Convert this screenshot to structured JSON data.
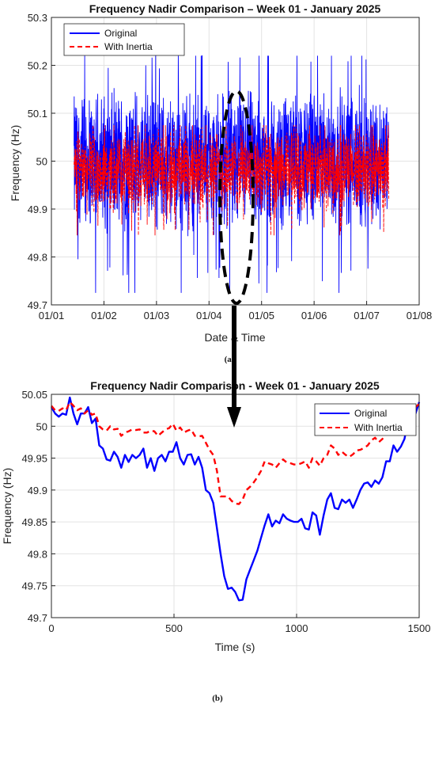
{
  "colors": {
    "original": "#0000ff",
    "with_inertia": "#ff0000",
    "annotation": "#000000"
  },
  "panel_labels": [
    "(a)",
    "(b)"
  ],
  "chart_data": [
    {
      "type": "line",
      "title": "Frequency Nadir Comparison  – Week 01 - January 2025",
      "xlabel": "Date & Time",
      "ylabel": "Frequency (Hz)",
      "x_ticks": [
        "01/01",
        "01/02",
        "01/03",
        "01/04",
        "01/05",
        "01/06",
        "01/07",
        "01/08"
      ],
      "xlim": [
        "01/01",
        "01/08"
      ],
      "y_ticks": [
        "49.7",
        "49.8",
        "49.9",
        "50",
        "50.1",
        "50.2",
        "50.3"
      ],
      "ylim": [
        49.7,
        50.3
      ],
      "grid": true,
      "legend": "top-left",
      "data_range_days": [
        "01/01 10:00",
        "01/07 10:00"
      ],
      "series": [
        {
          "name": "Original",
          "style": "solid",
          "center": 50.0,
          "band_low": 49.86,
          "band_high": 50.16,
          "min": 49.725,
          "max": 50.22
        },
        {
          "name": "With Inertia",
          "style": "dashed",
          "center": 49.98,
          "band_low": 49.89,
          "band_high": 50.06,
          "min": 49.845,
          "max": 50.075
        }
      ],
      "annotation": "ellipse around the 01/04 dip, arrow pointing to panel (b)"
    },
    {
      "type": "line",
      "title": "Frequency Nadir Comparison - Week 01 - January 2025",
      "xlabel": "Time (s)",
      "ylabel": "Frequency (Hz)",
      "x_ticks": [
        "0",
        "500",
        "1000",
        "1500"
      ],
      "xlim": [
        0,
        1500
      ],
      "y_ticks": [
        "49.7",
        "49.75",
        "49.8",
        "49.85",
        "49.9",
        "49.95",
        "50",
        "50.05"
      ],
      "ylim": [
        49.7,
        50.05
      ],
      "grid": true,
      "legend": "top-right",
      "x": [
        0,
        15,
        30,
        45,
        60,
        75,
        90,
        105,
        120,
        135,
        150,
        165,
        180,
        195,
        210,
        225,
        240,
        255,
        270,
        285,
        300,
        315,
        330,
        345,
        360,
        375,
        390,
        405,
        420,
        435,
        450,
        465,
        480,
        495,
        510,
        525,
        540,
        555,
        570,
        585,
        600,
        615,
        630,
        645,
        660,
        675,
        690,
        705,
        720,
        735,
        750,
        765,
        780,
        795,
        810,
        825,
        840,
        855,
        870,
        885,
        900,
        915,
        930,
        945,
        960,
        975,
        990,
        1005,
        1020,
        1035,
        1050,
        1065,
        1080,
        1095,
        1110,
        1125,
        1140,
        1155,
        1170,
        1185,
        1200,
        1215,
        1230,
        1245,
        1260,
        1275,
        1290,
        1305,
        1320,
        1335,
        1350,
        1365,
        1380,
        1395,
        1410,
        1425,
        1440,
        1455,
        1470,
        1485,
        1500
      ],
      "series": [
        {
          "name": "Original",
          "style": "solid",
          "values": [
            50.03,
            50.02,
            50.015,
            50.02,
            50.018,
            50.045,
            50.02,
            50.003,
            50.02,
            50.02,
            50.03,
            50.005,
            50.012,
            49.97,
            49.965,
            49.948,
            49.946,
            49.96,
            49.952,
            49.935,
            49.955,
            49.944,
            49.955,
            49.95,
            49.955,
            49.965,
            49.935,
            49.95,
            49.93,
            49.95,
            49.955,
            49.945,
            49.96,
            49.96,
            49.975,
            49.95,
            49.94,
            49.955,
            49.956,
            49.94,
            49.952,
            49.935,
            49.9,
            49.895,
            49.88,
            49.84,
            49.8,
            49.765,
            49.745,
            49.747,
            49.74,
            49.727,
            49.728,
            49.76,
            49.775,
            49.79,
            49.805,
            49.825,
            49.845,
            49.862,
            49.843,
            49.852,
            49.848,
            49.862,
            49.855,
            49.852,
            49.85,
            49.85,
            49.855,
            49.84,
            49.838,
            49.865,
            49.86,
            49.83,
            49.86,
            49.885,
            49.895,
            49.872,
            49.87,
            49.885,
            49.88,
            49.885,
            49.872,
            49.885,
            49.9,
            49.91,
            49.912,
            49.905,
            49.915,
            49.91,
            49.92,
            49.945,
            49.945,
            49.97,
            49.96,
            49.968,
            49.98,
            50.01,
            50.03,
            50.02,
            50.038
          ]
        },
        {
          "name": "With Inertia",
          "style": "dashed",
          "values": [
            50.032,
            50.025,
            50.024,
            50.028,
            50.025,
            50.038,
            50.032,
            50.025,
            50.028,
            50.02,
            50.025,
            50.018,
            50.02,
            50.0,
            49.995,
            49.993,
            50.0,
            49.995,
            49.996,
            49.985,
            49.99,
            49.992,
            49.995,
            49.994,
            49.995,
            49.99,
            49.99,
            49.993,
            49.992,
            49.985,
            49.99,
            49.995,
            49.997,
            50.004,
            49.993,
            49.998,
            49.99,
            49.993,
            49.995,
            49.985,
            49.984,
            49.985,
            49.974,
            49.963,
            49.955,
            49.93,
            49.89,
            49.89,
            49.89,
            49.883,
            49.879,
            49.878,
            49.885,
            49.9,
            49.905,
            49.912,
            49.92,
            49.93,
            49.945,
            49.942,
            49.94,
            49.935,
            49.942,
            49.948,
            49.943,
            49.942,
            49.94,
            49.94,
            49.942,
            49.945,
            49.935,
            49.95,
            49.945,
            49.938,
            49.95,
            49.955,
            49.97,
            49.965,
            49.955,
            49.96,
            49.955,
            49.952,
            49.956,
            49.962,
            49.963,
            49.966,
            49.97,
            49.978,
            49.982,
            49.975,
            49.98,
            49.99,
            49.99,
            49.994,
            49.998,
            50.0,
            50.01,
            50.02,
            50.035,
            50.03,
            50.035
          ]
        }
      ]
    }
  ]
}
